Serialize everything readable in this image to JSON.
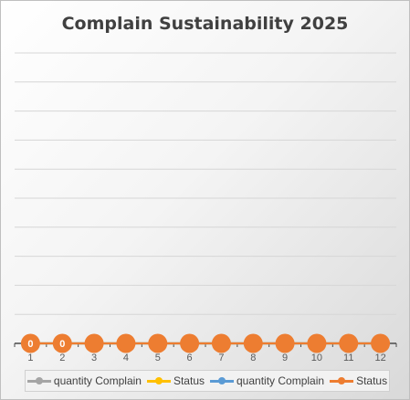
{
  "chart_data": {
    "type": "line",
    "title": "Complain Sustainability 2025",
    "categories": [
      "1",
      "2",
      "3",
      "4",
      "5",
      "6",
      "7",
      "8",
      "9",
      "10",
      "11",
      "12"
    ],
    "series": [
      {
        "name": "quantity Complain",
        "color": "#a5a5a5",
        "values": [
          0,
          0,
          0,
          0,
          0,
          0,
          0,
          0,
          0,
          0,
          0,
          0
        ]
      },
      {
        "name": "Status",
        "color": "#ffc000",
        "values": [
          0,
          0,
          0,
          0,
          0,
          0,
          0,
          0,
          0,
          0,
          0,
          0
        ]
      },
      {
        "name": "quantity Complain",
        "color": "#5b9bd5",
        "values": [
          0,
          0,
          0,
          0,
          0,
          0,
          0,
          0,
          0,
          0,
          0,
          0
        ]
      },
      {
        "name": "Status",
        "color": "#ed7d31",
        "values": [
          0,
          0,
          0,
          0,
          0,
          0,
          0,
          0,
          0,
          0,
          0,
          0
        ]
      }
    ],
    "data_labels": [
      "0",
      "0"
    ],
    "ylim": [
      0,
      10
    ],
    "gridlines": true,
    "legend_position": "bottom"
  }
}
